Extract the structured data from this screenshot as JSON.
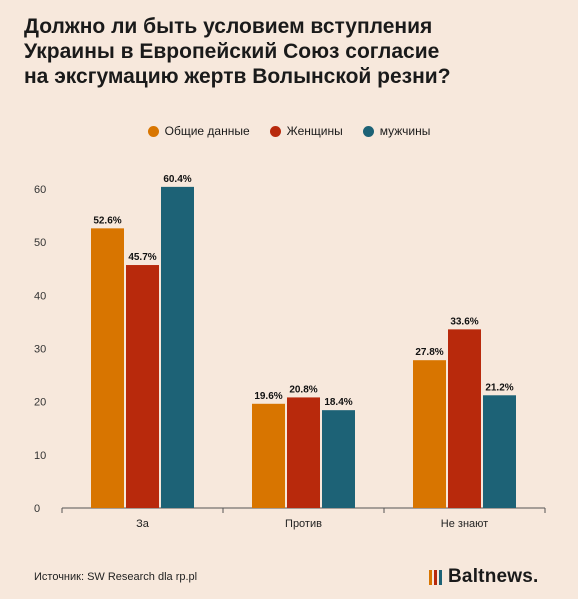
{
  "title_lines": [
    "Должно ли быть условием вступления",
    "Украины в Европейский Союз согласие",
    "на эксгумацию жертв Волынской резни?"
  ],
  "source": "Источник: SW Research dla rp.pl",
  "brand": "Baltnews.",
  "colors": {
    "background": "#f7e8dc",
    "series": [
      "#d87500",
      "#b8290c",
      "#1d6276"
    ],
    "brand_bars": [
      "#d87500",
      "#b8290c",
      "#1d6276"
    ]
  },
  "chart_data": {
    "type": "bar",
    "title": "Должно ли быть условием вступления Украины в Европейский Союз согласие на эксгумацию жертв Волынской резни?",
    "categories": [
      "За",
      "Против",
      "Не знают"
    ],
    "series": [
      {
        "name": "Общие данные",
        "values": [
          52.6,
          19.6,
          27.8
        ],
        "labels": [
          "52.6%",
          "19.6%",
          "27.8%"
        ]
      },
      {
        "name": "Женщины",
        "values": [
          45.7,
          20.8,
          33.6
        ],
        "labels": [
          "45.7%",
          "20.8%",
          "33.6%"
        ]
      },
      {
        "name": "мужчины",
        "values": [
          60.4,
          18.4,
          21.2
        ],
        "labels": [
          "60.4%",
          "18.4%",
          "21.2%"
        ]
      }
    ],
    "yticks": [
      "0",
      "10",
      "20",
      "30",
      "40",
      "50",
      "60"
    ],
    "ylim": [
      0,
      60
    ],
    "grid": false,
    "legend_position": "top-center",
    "xlabel": "",
    "ylabel": ""
  }
}
